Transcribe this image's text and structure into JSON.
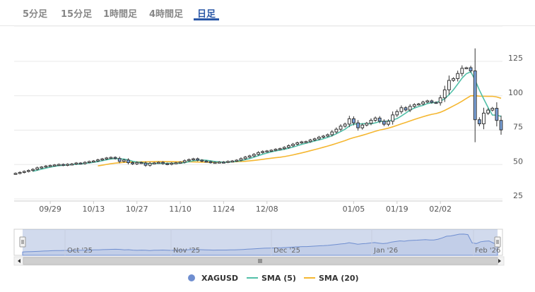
{
  "tabs": [
    {
      "label": "5分足",
      "active": false
    },
    {
      "label": "15分足",
      "active": false
    },
    {
      "label": "1時間足",
      "active": false
    },
    {
      "label": "4時間足",
      "active": false
    },
    {
      "label": "日足",
      "active": true
    }
  ],
  "chart_data": {
    "type": "candlestick",
    "y_ticks": [
      25,
      50,
      75,
      100,
      125
    ],
    "ylim": [
      12,
      137
    ],
    "x_ticks": [
      "09/29",
      "10/13",
      "10/27",
      "11/10",
      "11/24",
      "12/08",
      "01/05",
      "01/19",
      "02/02"
    ],
    "navigator_labels": [
      "Oct '25",
      "Nov '25",
      "Dec '25",
      "Jan '26",
      "Feb '26"
    ],
    "colors": {
      "price": "#333333",
      "sma5": "#52bfa8",
      "sma20": "#f5b731",
      "navigator": "#6f8ed0",
      "up_fill": "#ffffff",
      "down_fill": "#7aa3dc"
    },
    "series": [
      {
        "name": "XAGUSD",
        "type": "candlestick",
        "close": [
          40.5,
          41.2,
          41.9,
          42.6,
          43.4,
          44.5,
          45.1,
          45.8,
          46.2,
          46.6,
          47.0,
          46.4,
          47.1,
          47.3,
          48.0,
          47.6,
          48.5,
          49.1,
          49.5,
          50.3,
          51.0,
          51.7,
          52.1,
          51.3,
          49.2,
          50.2,
          48.3,
          47.4,
          48.4,
          48.0,
          46.4,
          47.8,
          48.1,
          48.5,
          47.6,
          47.1,
          47.9,
          48.2,
          48.6,
          49.7,
          50.5,
          51.1,
          50.1,
          49.4,
          49.0,
          48.3,
          48.5,
          48.7,
          48.6,
          49.2,
          49.5,
          50.1,
          51.2,
          52.3,
          53.2,
          54.3,
          55.6,
          56.4,
          56.8,
          57.3,
          58.0,
          58.5,
          59.4,
          60.6,
          61.7,
          62.7,
          63.4,
          63.6,
          64.7,
          65.6,
          66.8,
          67.6,
          68.6,
          70.6,
          72.6,
          74.8,
          76.3,
          80.2,
          77.2,
          73.6,
          75.6,
          76.9,
          79.1,
          80.7,
          78.4,
          76.2,
          78.4,
          83.0,
          85.4,
          88.2,
          86.6,
          89.2,
          90.5,
          91.0,
          92.3,
          93.2,
          92.1,
          91.8,
          95.4,
          101.2,
          108.1,
          109.4,
          113.1,
          116.9,
          117.3,
          115.0,
          79.5,
          76.5,
          84.3,
          86.5,
          87.8,
          79.0,
          72.1
        ]
      },
      {
        "name": "SMA (5)",
        "type": "line"
      },
      {
        "name": "SMA (20)",
        "type": "line"
      }
    ]
  }
}
